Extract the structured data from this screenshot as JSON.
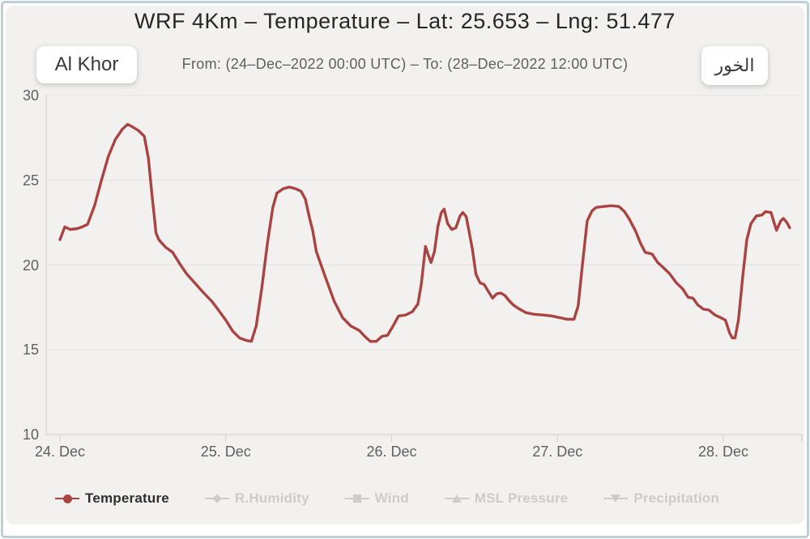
{
  "colors": {
    "temperature": "#a94442",
    "muted_legend": "#cccccc",
    "background": "#f2f1ef",
    "frame_border": "#bccfdb",
    "gridline": "#e3e2e0",
    "axis_line": "#cfcecc"
  },
  "header": {
    "title": "WRF 4Km – Temperature – Lat: 25.653 – Lng: 51.477",
    "subtitle": "From: (24–Dec–2022 00:00 UTC) – To: (28–Dec–2022 12:00 UTC)",
    "location_en": "Al Khor",
    "location_ar": "الخور"
  },
  "legend": {
    "items": [
      {
        "label": "Temperature",
        "symbol": "circle",
        "active": true
      },
      {
        "label": "R.Humidity",
        "symbol": "diamond",
        "active": false
      },
      {
        "label": "Wind",
        "symbol": "square",
        "active": false
      },
      {
        "label": "MSL Pressure",
        "symbol": "triangle-up",
        "active": false
      },
      {
        "label": "Precipitation",
        "symbol": "triangle-down",
        "active": false
      }
    ]
  },
  "chart_data": {
    "type": "line",
    "title": "WRF 4Km – Temperature – Lat: 25.653 – Lng: 51.477",
    "subtitle": "From: (24–Dec–2022 00:00 UTC) – To: (28–Dec–2022 12:00 UTC)",
    "xlabel": "",
    "ylabel": "",
    "x_axis": {
      "unit": "hours since 24-Dec-2022 00:00 UTC",
      "range_hours": [
        0,
        108.5
      ],
      "tick_hours": [
        0,
        24,
        48,
        72,
        96
      ],
      "tick_labels": [
        "24. Dec",
        "25. Dec",
        "26. Dec",
        "27. Dec",
        "28. Dec"
      ]
    },
    "y_axis": {
      "ticks": [
        10,
        15,
        20,
        25,
        30
      ],
      "range": [
        10,
        30
      ],
      "grid": true
    },
    "legend_position": "bottom",
    "series": [
      {
        "name": "Temperature",
        "color": "#a94442",
        "x_hours": [
          0,
          0.7,
          1.5,
          2.5,
          3.2,
          4,
          5,
          6,
          7,
          8,
          9,
          9.8,
          10.5,
          11.3,
          12.2,
          12.8,
          13.3,
          13.9,
          14.3,
          15.3,
          16.3,
          17.3,
          18.3,
          19.5,
          20.7,
          22,
          23.1,
          24,
          25,
          26,
          27,
          27.7,
          28.4,
          29.2,
          30,
          30.8,
          31.4,
          32.3,
          33.2,
          34.1,
          34.9,
          35.5,
          36.1,
          36.6,
          37.1,
          38.4,
          39.7,
          40.9,
          42.1,
          43.3,
          44.1,
          44.9,
          45.8,
          46.6,
          47.4,
          48.2,
          49,
          50,
          51,
          51.8,
          52.3,
          52.9,
          53.3,
          53.7,
          54.2,
          54.7,
          55.2,
          55.6,
          56.1,
          56.7,
          57.3,
          57.9,
          58.3,
          58.8,
          59.2,
          59.7,
          60.2,
          60.8,
          61.4,
          62,
          62.6,
          63.2,
          63.8,
          64.4,
          65,
          65.6,
          66.3,
          67.4,
          68.6,
          70,
          71.2,
          72.3,
          73.4,
          74.4,
          75,
          75.6,
          76.3,
          77,
          77.6,
          78.6,
          79.8,
          80.9,
          81.7,
          82.4,
          83.3,
          84,
          84.7,
          85.7,
          86.5,
          87.2,
          88.2,
          89.2,
          90.1,
          90.9,
          91.6,
          92.3,
          93.1,
          93.9,
          94.8,
          95.6,
          96.3,
          96.9,
          97.3,
          97.7,
          98.2,
          98.8,
          99.4,
          100,
          100.8,
          101.6,
          102.1,
          102.9,
          103.3,
          103.7,
          104.3,
          104.7,
          105.2,
          105.6
        ],
        "values": [
          21.5,
          22.25,
          22.1,
          22.15,
          22.25,
          22.4,
          23.5,
          25.0,
          26.4,
          27.4,
          28.0,
          28.3,
          28.15,
          27.95,
          27.6,
          26.3,
          24.2,
          21.9,
          21.5,
          21.05,
          20.75,
          20.1,
          19.5,
          18.95,
          18.4,
          17.85,
          17.25,
          16.75,
          16.1,
          15.7,
          15.55,
          15.5,
          16.4,
          18.6,
          21.2,
          23.4,
          24.25,
          24.5,
          24.6,
          24.5,
          24.35,
          23.9,
          22.8,
          22.0,
          20.8,
          19.3,
          17.85,
          16.9,
          16.4,
          16.15,
          15.8,
          15.5,
          15.5,
          15.8,
          15.85,
          16.4,
          17.0,
          17.05,
          17.25,
          17.7,
          18.9,
          21.1,
          20.6,
          20.15,
          20.8,
          22.3,
          23.1,
          23.3,
          22.45,
          22.1,
          22.2,
          22.9,
          23.1,
          22.85,
          22.0,
          20.9,
          19.45,
          18.95,
          18.85,
          18.45,
          18.05,
          18.3,
          18.35,
          18.2,
          17.9,
          17.65,
          17.45,
          17.2,
          17.1,
          17.05,
          17.0,
          16.9,
          16.8,
          16.8,
          17.6,
          20.0,
          22.6,
          23.2,
          23.4,
          23.45,
          23.5,
          23.45,
          23.15,
          22.7,
          22.0,
          21.3,
          20.75,
          20.65,
          20.15,
          19.9,
          19.5,
          18.95,
          18.6,
          18.1,
          18.05,
          17.65,
          17.4,
          17.35,
          17.05,
          16.9,
          16.75,
          16.0,
          15.7,
          15.7,
          16.8,
          19.3,
          21.5,
          22.45,
          22.9,
          22.95,
          23.15,
          23.1,
          22.55,
          22.05,
          22.6,
          22.75,
          22.5,
          22.2
        ]
      }
    ]
  }
}
